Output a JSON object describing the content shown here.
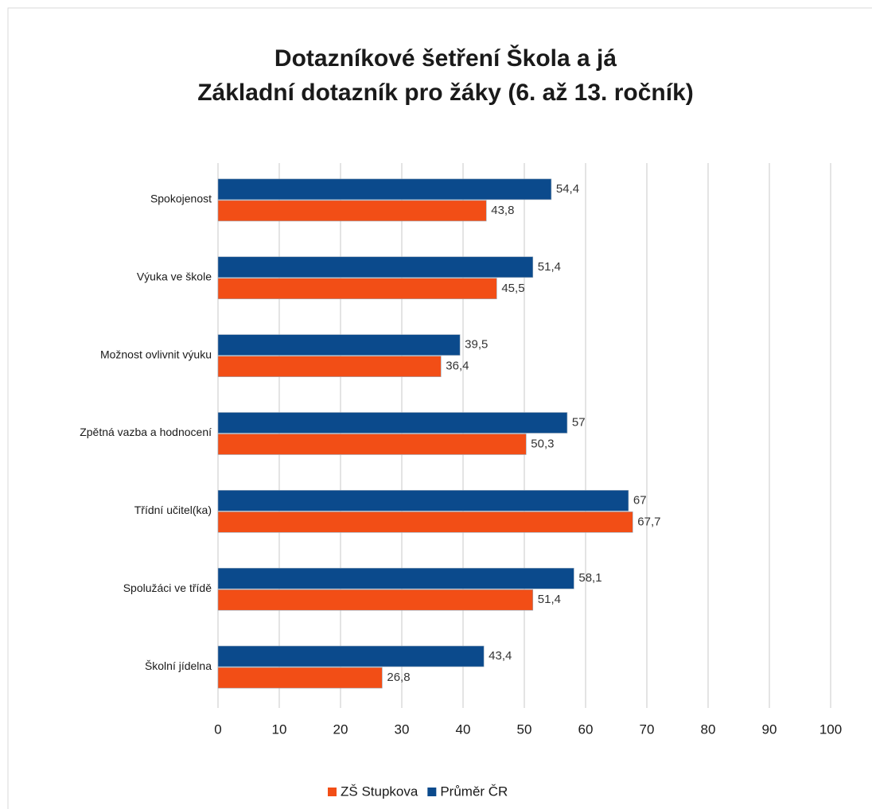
{
  "chart_data": {
    "type": "bar",
    "orientation": "horizontal",
    "title": "Dotazníkové šetření Škola a já",
    "subtitle": "Základní dotazník pro žáky (6. až 13. ročník)",
    "categories": [
      "Spokojenost",
      "Výuka ve škole",
      "Možnost ovlivnit výuku",
      "Zpětná vazba a hodnocení",
      "Třídní učitel(ka)",
      "Spolužáci ve třídě",
      "Školní jídelna"
    ],
    "series": [
      {
        "name": "ZŠ Stupkova",
        "color": "#f24e16",
        "values": [
          43.8,
          45.5,
          36.4,
          50.3,
          67.7,
          51.4,
          26.8
        ],
        "value_labels": [
          "43,8",
          "45,5",
          "36,4",
          "50,3",
          "67,7",
          "51,4",
          "26,8"
        ]
      },
      {
        "name": "Průměr ČR",
        "color": "#0b4a8c",
        "values": [
          54.4,
          51.4,
          39.5,
          57,
          67,
          58.1,
          43.4
        ],
        "value_labels": [
          "54,4",
          "51,4",
          "39,5",
          "57",
          "67",
          "58,1",
          "43,4"
        ]
      }
    ],
    "xlim": [
      0,
      100
    ],
    "xticks": [
      0,
      10,
      20,
      30,
      40,
      50,
      60,
      70,
      80,
      90,
      100
    ],
    "grid": true,
    "legend": "bottom"
  }
}
